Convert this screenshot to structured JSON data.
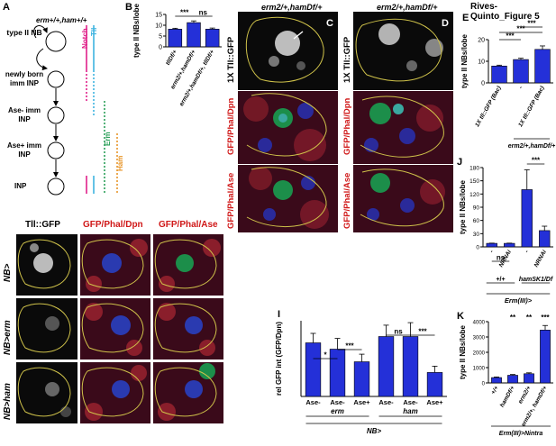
{
  "figure_title": "Rives-Quinto_Figure 5",
  "panel_letters": [
    "A",
    "B",
    "C",
    "D",
    "E",
    "F",
    "G",
    "H",
    "I",
    "J",
    "K"
  ],
  "panelA": {
    "genotype": "erm+/+,ham+/+",
    "stages": [
      "type II NB",
      "newly born imm INP",
      "Ase- imm INP",
      "Ase+ imm INP",
      "INP"
    ],
    "markers": {
      "notch": "Notch",
      "tll": "Tll",
      "erm": "Erm",
      "ham": "Ham"
    },
    "colors": {
      "notch": "#e0218a",
      "tll": "#3fb4e0",
      "erm": "#2ca05a",
      "ham": "#e8962a"
    }
  },
  "panelC": {
    "genotype": "erm2/+,hamDf/+",
    "row_labels": [
      "1X Tll::GFP",
      "GFP/Phal/Dpn",
      "GFP/Phal/Ase"
    ]
  },
  "panelD": {
    "genotype": "erm2/+,hamDf/+",
    "row_labels": [
      "1X Tll::GFP",
      "GFP/Phal/Dpn",
      "GFP/Phal/Ase"
    ]
  },
  "panelFGH": {
    "col_labels": [
      "Tll::GFP",
      "GFP/Phal/Dpn",
      "GFP/Phal/Ase"
    ],
    "row_labels": [
      "NB>",
      "NB>erm",
      "NB>ham"
    ]
  },
  "chart_data": [
    {
      "panel": "B",
      "type": "bar",
      "ylabel": "type II NBs/lobe",
      "ylim": [
        0,
        15
      ],
      "yticks": [
        0,
        5,
        10,
        15
      ],
      "categories": [
        "tllDf/+",
        "erm2/+,hamDf/+",
        "erm2/+,hamDf/+, tllDf/+"
      ],
      "values": [
        8.2,
        11.2,
        8.2
      ],
      "errors": [
        0.4,
        0.8,
        0.5
      ],
      "significance": [
        {
          "from": 0,
          "to": 1,
          "label": "***"
        },
        {
          "from": 1,
          "to": 2,
          "label": "ns"
        }
      ]
    },
    {
      "panel": "E",
      "type": "bar",
      "ylabel": "type II NBs/lobe",
      "ylim": [
        0,
        20
      ],
      "yticks": [
        0,
        10,
        20
      ],
      "categories": [
        "1X tll::GFP (Bac)",
        "-",
        "1X tll::GFP (Bac)"
      ],
      "group_label": "erm2/+,hamDf/+",
      "values": [
        7.8,
        10.8,
        15.5
      ],
      "errors": [
        0.4,
        0.6,
        1.6
      ],
      "significance": [
        {
          "from": 0,
          "to": 1,
          "label": "***"
        },
        {
          "from": 0,
          "to": 2,
          "label": "***"
        },
        {
          "from": 1,
          "to": 2,
          "label": "***"
        }
      ]
    },
    {
      "panel": "J",
      "type": "bar",
      "ylabel": "type II NBs/lobe",
      "ylim": [
        0,
        180
      ],
      "yticks": [
        0,
        30,
        60,
        90,
        120,
        150,
        180
      ],
      "categories": [
        "-",
        "NRNAi",
        "-",
        "NRNAi"
      ],
      "groups": [
        "+/+",
        "hamSK1/Df"
      ],
      "xlabel": "Erm(III)>",
      "values": [
        8,
        8,
        130,
        37
      ],
      "errors": [
        0.5,
        0.5,
        45,
        10
      ],
      "significance": [
        {
          "from": 0,
          "to": 1,
          "label": "ns"
        },
        {
          "from": 2,
          "to": 3,
          "label": "***"
        }
      ]
    },
    {
      "panel": "I",
      "type": "bar",
      "ylabel": "rel GFP int (GFP/Dpn)",
      "ylim": [
        0,
        1.2
      ],
      "categories": [
        "Ase-",
        "Ase-",
        "Ase+",
        "Ase-",
        "Ase-",
        "Ase+"
      ],
      "groups": [
        "erm",
        "ham"
      ],
      "xlabel": "NB>",
      "values": [
        0.85,
        0.75,
        0.55,
        0.95,
        0.95,
        0.38
      ],
      "errors": [
        0.15,
        0.17,
        0.12,
        0.18,
        0.22,
        0.1
      ],
      "significance": [
        {
          "from": 0,
          "to": 1,
          "label": "*"
        },
        {
          "from": 1,
          "to": 2,
          "label": "***"
        },
        {
          "from": 3,
          "to": 4,
          "label": "ns"
        },
        {
          "from": 4,
          "to": 5,
          "label": "***"
        }
      ]
    },
    {
      "panel": "K",
      "type": "bar",
      "ylabel": "type II NBs/lobe",
      "ylim": [
        0,
        4000
      ],
      "yticks": [
        0,
        1000,
        2000,
        3000,
        4000
      ],
      "categories": [
        "+/+",
        "hamDf/+",
        "erm2/+",
        "erm2/+, hamDf/+"
      ],
      "xlabel": "Erm(III)>Nintra",
      "values": [
        350,
        500,
        600,
        3450
      ],
      "errors": [
        40,
        50,
        60,
        300
      ],
      "significance": [
        {
          "at": 1,
          "label": "**"
        },
        {
          "at": 2,
          "label": "**"
        },
        {
          "at": 3,
          "label": "***"
        }
      ]
    }
  ]
}
